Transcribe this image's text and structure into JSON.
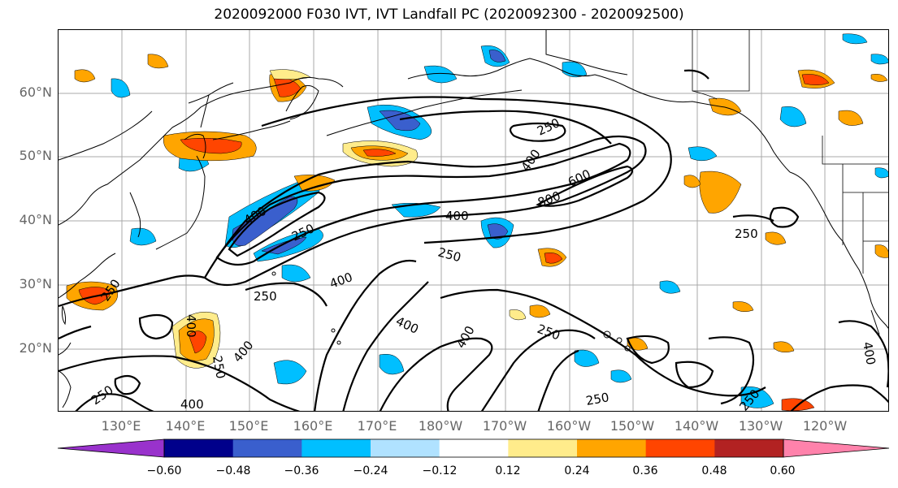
{
  "title": "2020092000 F030 IVT, IVT Landfall PC (2020092300 - 2020092500)",
  "lat_labels": [
    "60°N",
    "50°N",
    "40°N",
    "30°N",
    "20°N"
  ],
  "lon_labels": [
    "130°E",
    "140°E",
    "150°E",
    "160°E",
    "170°E",
    "180°W",
    "170°W",
    "160°W",
    "150°W",
    "140°W",
    "130°W",
    "120°W"
  ],
  "colorbar": {
    "ticks": [
      "−0.60",
      "−0.48",
      "−0.36",
      "−0.24",
      "−0.12",
      "0.12",
      "0.24",
      "0.36",
      "0.48",
      "0.60"
    ],
    "colors": [
      "#9932cc",
      "#00008b",
      "#3a5fcd",
      "#00bfff",
      "#b0e2ff",
      "#ffffff",
      "#ffec8b",
      "#ffa500",
      "#ff4500",
      "#b22222",
      "#ff82ab"
    ]
  },
  "contour_labels": [
    "400",
    "250",
    "250",
    "400",
    "250",
    "400",
    "800",
    "600",
    "400",
    "250",
    "250",
    "400",
    "250",
    "400",
    "400",
    "250",
    "400",
    "250",
    "250",
    "400",
    "400",
    "250",
    "250"
  ]
}
